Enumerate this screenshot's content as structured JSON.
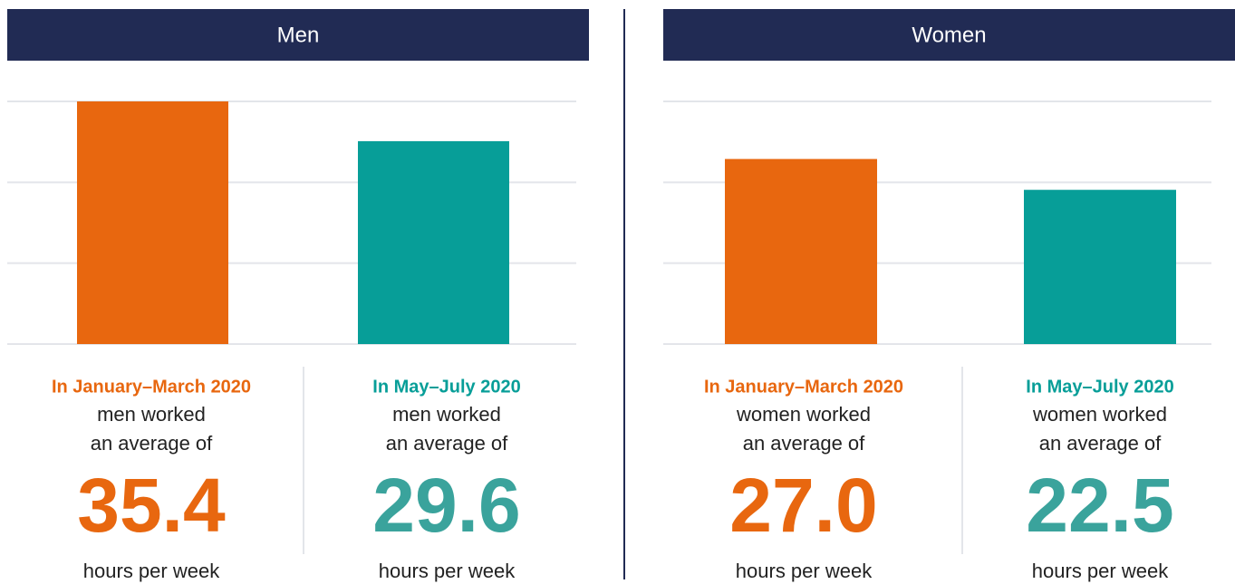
{
  "chart_data": [
    {
      "type": "bar",
      "title": "Men",
      "categories": [
        "In January–March 2020",
        "In May–July 2020"
      ],
      "values": [
        35.4,
        29.6
      ],
      "value_labels": [
        "35.4",
        "29.6"
      ],
      "colors": [
        "#e8670f",
        "#079e98"
      ],
      "text_lines": [
        "men worked",
        "an average of"
      ],
      "unit": "hours per week",
      "ylim": [
        0,
        35.4
      ],
      "yticks": [
        0,
        11.8,
        23.6,
        35.4
      ],
      "grid": true
    },
    {
      "type": "bar",
      "title": "Women",
      "categories": [
        "In January–March 2020",
        "In May–July 2020"
      ],
      "values": [
        27.0,
        22.5
      ],
      "value_labels": [
        "27.0",
        "22.5"
      ],
      "colors": [
        "#e8670f",
        "#079e98"
      ],
      "text_lines": [
        "women worked",
        "an average of"
      ],
      "unit": "hours per week",
      "ylim": [
        0,
        35.4
      ],
      "yticks": [
        0,
        11.8,
        23.6,
        35.4
      ],
      "grid": true
    }
  ]
}
